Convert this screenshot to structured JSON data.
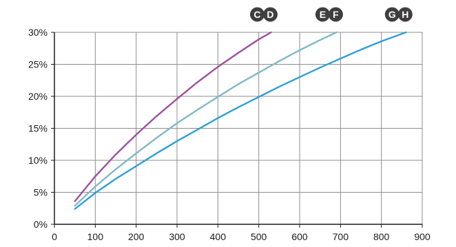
{
  "chart_data": {
    "type": "line",
    "xlim": [
      0,
      900
    ],
    "ylim": [
      0,
      30
    ],
    "x_ticks": [
      0,
      100,
      200,
      300,
      400,
      500,
      600,
      700,
      800,
      900
    ],
    "x_tick_labels": [
      "0",
      "100",
      "200",
      "300",
      "400",
      "500",
      "600",
      "700",
      "800",
      "900"
    ],
    "y_ticks": [
      0,
      5,
      10,
      15,
      20,
      25,
      30
    ],
    "y_tick_labels": [
      "0%",
      "5%",
      "10%",
      "15%",
      "20%",
      "25%",
      "30%"
    ],
    "grid": true,
    "legend": "badges above top axis",
    "series": [
      {
        "name": "C D",
        "badge_labels": [
          "C",
          "D"
        ],
        "color": "#9c4f9e",
        "x": [
          50,
          100,
          150,
          200,
          250,
          300,
          350,
          400,
          450,
          500,
          530
        ],
        "y": [
          3.6,
          7.5,
          10.9,
          14.0,
          16.9,
          19.6,
          22.2,
          24.6,
          26.8,
          28.9,
          30.0
        ]
      },
      {
        "name": "E F",
        "badge_labels": [
          "E",
          "F"
        ],
        "color": "#7fb8c8",
        "x": [
          50,
          100,
          150,
          200,
          250,
          300,
          350,
          400,
          450,
          500,
          550,
          600,
          650,
          690
        ],
        "y": [
          2.9,
          5.9,
          8.6,
          11.1,
          13.5,
          15.8,
          17.9,
          19.9,
          21.9,
          23.7,
          25.5,
          27.2,
          28.8,
          30.0
        ]
      },
      {
        "name": "G H",
        "badge_labels": [
          "G",
          "H"
        ],
        "color": "#2f9ed8",
        "x": [
          50,
          100,
          150,
          200,
          250,
          300,
          350,
          400,
          450,
          500,
          550,
          600,
          650,
          700,
          750,
          800,
          860
        ],
        "y": [
          2.4,
          4.9,
          7.1,
          9.1,
          11.1,
          13.0,
          14.8,
          16.6,
          18.3,
          19.9,
          21.5,
          23.0,
          24.5,
          25.9,
          27.3,
          28.6,
          30.0
        ]
      }
    ]
  },
  "badge_color": "#3f3f3f"
}
